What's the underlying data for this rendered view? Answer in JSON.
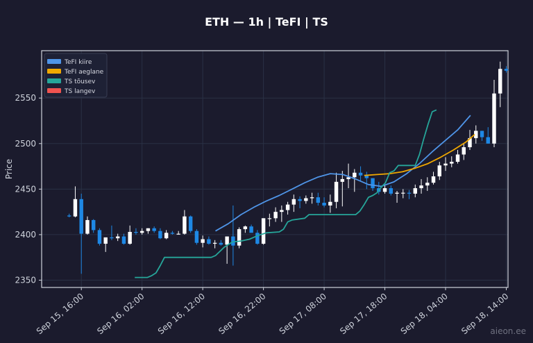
{
  "chart_data": {
    "type": "candlestick",
    "title": "ETH — 1h  |  TeFI  |  TS",
    "ylabel": "Price",
    "xlabel": "",
    "ylim": [
      2342,
      2602
    ],
    "yticks": [
      2350,
      2400,
      2450,
      2500,
      2550
    ],
    "xticks": [
      {
        "label": "Sep 15, 16:00",
        "i": 2
      },
      {
        "label": "Sep 16, 02:00",
        "i": 12
      },
      {
        "label": "Sep 16, 12:00",
        "i": 22
      },
      {
        "label": "Sep 16, 22:00",
        "i": 32
      },
      {
        "label": "Sep 17, 08:00",
        "i": 42
      },
      {
        "label": "Sep 17, 18:00",
        "i": 52
      },
      {
        "label": "Sep 18, 04:00",
        "i": 62
      },
      {
        "label": "Sep 18, 14:00",
        "i": 72
      }
    ],
    "grid": true,
    "legend_position": "top-left",
    "colors": {
      "up": "#ffffff",
      "down": "#1e88e5",
      "tefi_fast": "#4f95e8",
      "tefi_slow": "#f0a800",
      "ts_up": "#26a69a",
      "ts_down": "#ef5350",
      "grid": "#2a3145",
      "axes": "#cfd3dc"
    },
    "candles": [
      [
        2421,
        2423,
        2419,
        2420
      ],
      [
        2420,
        2453,
        2419,
        2439
      ],
      [
        2439,
        2445,
        2357,
        2401
      ],
      [
        2401,
        2420,
        2400,
        2416
      ],
      [
        2416,
        2417,
        2402,
        2405
      ],
      [
        2405,
        2407,
        2388,
        2390
      ],
      [
        2390,
        2396,
        2381,
        2397
      ],
      [
        2397,
        2410,
        2394,
        2396
      ],
      [
        2396,
        2401,
        2393,
        2398
      ],
      [
        2398,
        2401,
        2389,
        2390
      ],
      [
        2390,
        2410,
        2389,
        2403
      ],
      [
        2403,
        2407,
        2400,
        2402
      ],
      [
        2402,
        2407,
        2400,
        2404
      ],
      [
        2404,
        2407,
        2401,
        2407
      ],
      [
        2407,
        2409,
        2402,
        2404
      ],
      [
        2404,
        2407,
        2395,
        2396
      ],
      [
        2396,
        2405,
        2395,
        2402
      ],
      [
        2402,
        2404,
        2400,
        2401
      ],
      [
        2401,
        2404,
        2400,
        2401
      ],
      [
        2401,
        2427,
        2400,
        2420
      ],
      [
        2420,
        2421,
        2402,
        2404
      ],
      [
        2404,
        2406,
        2389,
        2391
      ],
      [
        2391,
        2399,
        2386,
        2395
      ],
      [
        2395,
        2398,
        2389,
        2390
      ],
      [
        2390,
        2394,
        2385,
        2391
      ],
      [
        2391,
        2394,
        2388,
        2389
      ],
      [
        2389,
        2396,
        2368,
        2398
      ],
      [
        2398,
        2432,
        2366,
        2388
      ],
      [
        2388,
        2408,
        2385,
        2406
      ],
      [
        2406,
        2410,
        2402,
        2409
      ],
      [
        2409,
        2411,
        2404,
        2402
      ],
      [
        2402,
        2405,
        2389,
        2390
      ],
      [
        2390,
        2418,
        2389,
        2418
      ],
      [
        2418,
        2423,
        2409,
        2418
      ],
      [
        2418,
        2430,
        2414,
        2425
      ],
      [
        2425,
        2432,
        2414,
        2427
      ],
      [
        2427,
        2436,
        2422,
        2433
      ],
      [
        2433,
        2444,
        2425,
        2439
      ],
      [
        2439,
        2442,
        2429,
        2437
      ],
      [
        2437,
        2443,
        2434,
        2440
      ],
      [
        2440,
        2446,
        2434,
        2441
      ],
      [
        2441,
        2446,
        2432,
        2435
      ],
      [
        2435,
        2441,
        2430,
        2432
      ],
      [
        2432,
        2444,
        2424,
        2436
      ],
      [
        2436,
        2468,
        2429,
        2458
      ],
      [
        2458,
        2470,
        2431,
        2461
      ],
      [
        2461,
        2478,
        2451,
        2463
      ],
      [
        2463,
        2472,
        2447,
        2468
      ],
      [
        2468,
        2475,
        2459,
        2465
      ],
      [
        2465,
        2469,
        2450,
        2462
      ],
      [
        2462,
        2462,
        2448,
        2451
      ],
      [
        2451,
        2458,
        2444,
        2447
      ],
      [
        2447,
        2455,
        2445,
        2451
      ],
      [
        2451,
        2454,
        2443,
        2445
      ],
      [
        2445,
        2448,
        2435,
        2446
      ],
      [
        2446,
        2450,
        2440,
        2446
      ],
      [
        2446,
        2449,
        2439,
        2445
      ],
      [
        2445,
        2455,
        2441,
        2451
      ],
      [
        2451,
        2461,
        2445,
        2454
      ],
      [
        2454,
        2463,
        2448,
        2457
      ],
      [
        2457,
        2469,
        2455,
        2464
      ],
      [
        2464,
        2480,
        2460,
        2476
      ],
      [
        2476,
        2485,
        2470,
        2478
      ],
      [
        2478,
        2486,
        2474,
        2480
      ],
      [
        2480,
        2493,
        2478,
        2488
      ],
      [
        2488,
        2500,
        2482,
        2496
      ],
      [
        2496,
        2515,
        2493,
        2506
      ],
      [
        2506,
        2520,
        2500,
        2514
      ],
      [
        2514,
        2514,
        2503,
        2507
      ],
      [
        2507,
        2518,
        2500,
        2500
      ],
      [
        2500,
        2570,
        2496,
        2555
      ],
      [
        2555,
        2590,
        2540,
        2582
      ],
      [
        2582,
        2585,
        2578,
        2580
      ]
    ],
    "series": [
      {
        "name": "TeFI kiire",
        "points": [
          [
            33,
            2404
          ],
          [
            36,
            2412
          ],
          [
            39,
            2422
          ],
          [
            42,
            2430
          ],
          [
            45,
            2437
          ],
          [
            48,
            2443
          ],
          [
            51,
            2450
          ],
          [
            54,
            2457
          ],
          [
            57,
            2463
          ],
          [
            60,
            2467
          ],
          [
            63,
            2466
          ],
          [
            66,
            2461
          ],
          [
            69,
            2455
          ],
          [
            72,
            2453
          ],
          [
            75,
            2458
          ],
          [
            78,
            2467
          ],
          [
            81,
            2478
          ],
          [
            84,
            2491
          ],
          [
            87,
            2503
          ],
          [
            90,
            2515
          ],
          [
            93,
            2531
          ]
        ]
      },
      {
        "name": "TeFI aeglane",
        "points": [
          [
            68,
            2465
          ],
          [
            71,
            2466
          ],
          [
            74,
            2467
          ],
          [
            77,
            2469
          ],
          [
            80,
            2473
          ],
          [
            83,
            2478
          ],
          [
            86,
            2485
          ],
          [
            89,
            2493
          ],
          [
            92,
            2502
          ],
          [
            94,
            2510
          ]
        ]
      },
      {
        "name": "TS tõusev",
        "points": [
          [
            14,
            2353
          ],
          [
            17,
            2353
          ],
          [
            18,
            2355
          ],
          [
            19,
            2358
          ],
          [
            20,
            2366
          ],
          [
            21,
            2375
          ],
          [
            30,
            2375
          ],
          [
            32,
            2375
          ],
          [
            33,
            2377
          ],
          [
            35,
            2386
          ],
          [
            37,
            2392
          ],
          [
            39,
            2393
          ],
          [
            41,
            2395
          ],
          [
            43,
            2399
          ],
          [
            45,
            2402
          ],
          [
            48,
            2403
          ],
          [
            49,
            2406
          ],
          [
            50,
            2414
          ],
          [
            51,
            2416
          ],
          [
            54,
            2418
          ],
          [
            55,
            2422
          ],
          [
            66,
            2422
          ],
          [
            67,
            2426
          ],
          [
            68,
            2433
          ],
          [
            69,
            2441
          ],
          [
            70,
            2443
          ],
          [
            71,
            2446
          ],
          [
            72,
            2452
          ],
          [
            73,
            2457
          ],
          [
            74,
            2468
          ],
          [
            75,
            2470
          ],
          [
            76,
            2476
          ],
          [
            80,
            2476
          ],
          [
            81,
            2488
          ],
          [
            82,
            2505
          ],
          [
            83,
            2521
          ],
          [
            84,
            2535
          ],
          [
            85,
            2537
          ]
        ]
      },
      {
        "name": "TS langev",
        "points": []
      }
    ],
    "x_label_rotation": -40
  },
  "watermark": "aieon.ee"
}
